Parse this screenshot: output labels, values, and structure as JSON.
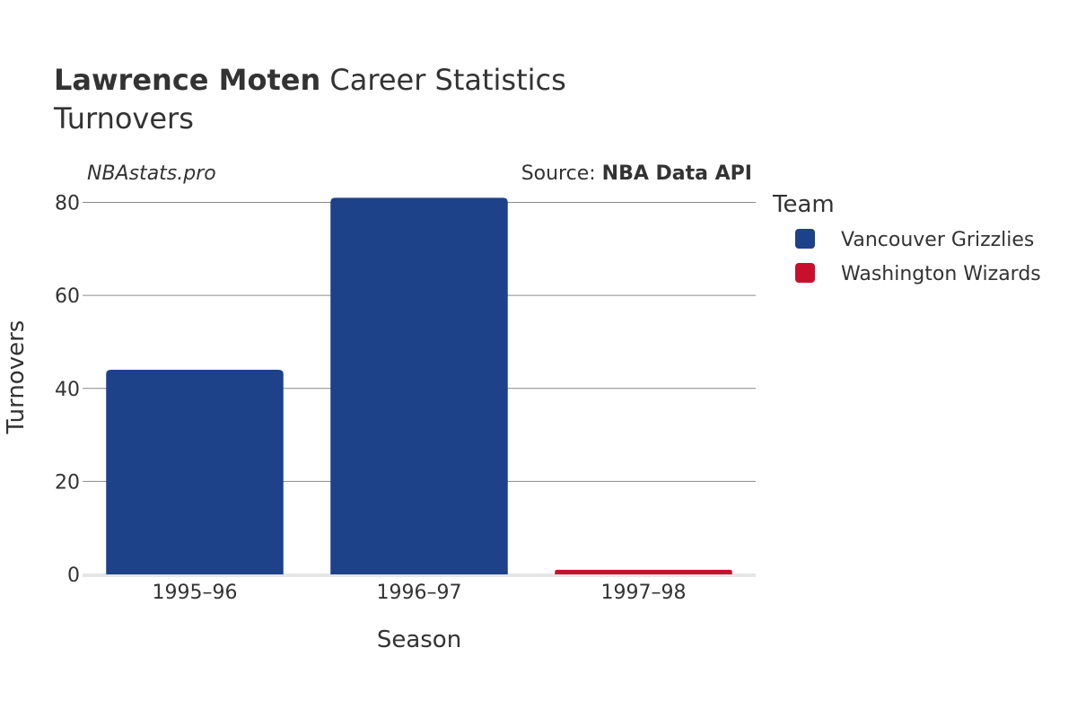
{
  "header": {
    "title_bold": "Lawrence Moten",
    "title_rest": " Career Statistics",
    "subtitle": "Turnovers"
  },
  "credits": {
    "site": "NBAstats.pro",
    "source_prefix": "Source: ",
    "source_name": "NBA Data API"
  },
  "legend": {
    "title": "Team",
    "items": [
      {
        "label": "Vancouver Grizzlies",
        "color": "#1d4289"
      },
      {
        "label": "Washington Wizards",
        "color": "#c8102e"
      }
    ]
  },
  "chart_data": {
    "type": "bar",
    "title": "Lawrence Moten Career Statistics",
    "subtitle": "Turnovers",
    "xlabel": "Season",
    "ylabel": "Turnovers",
    "categories": [
      "1995–96",
      "1996–97",
      "1997–98"
    ],
    "ylim": [
      0,
      83
    ],
    "yticks": [
      0,
      20,
      40,
      60,
      80
    ],
    "ytick_labels": [
      "0",
      "20",
      "40",
      "60",
      "80"
    ],
    "grid": true,
    "legend_position": "right",
    "bars": [
      {
        "category": "1995–96",
        "team": "Vancouver Grizzlies",
        "value": 44,
        "color": "#1d4289"
      },
      {
        "category": "1996–97",
        "team": "Vancouver Grizzlies",
        "value": 81,
        "color": "#1d4289"
      },
      {
        "category": "1997–98",
        "team": "Washington Wizards",
        "value": 1,
        "color": "#c8102e"
      }
    ]
  }
}
